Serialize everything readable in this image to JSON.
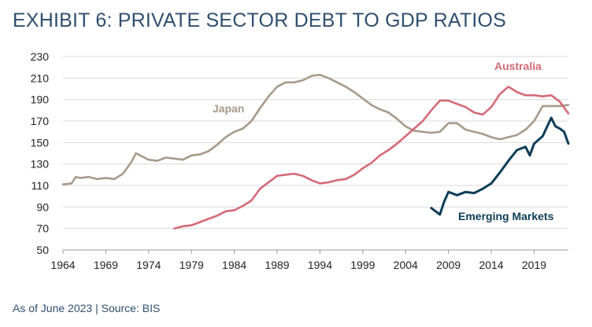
{
  "title": "EXHIBIT 6: PRIVATE SECTOR DEBT TO GDP RATIOS",
  "footer": "As of June 2023 | Source: BIS",
  "colors": {
    "japan": "#a89a8a",
    "australia": "#d46a76",
    "emerging": "#0e3d57",
    "title": "#2f4f6f"
  },
  "chart_data": {
    "type": "line",
    "xlabel": "",
    "ylabel": "",
    "xlim": [
      1964,
      2023
    ],
    "ylim": [
      50,
      230
    ],
    "y_ticks": [
      50,
      70,
      90,
      110,
      130,
      150,
      170,
      190,
      210,
      230
    ],
    "x_ticks": [
      1964,
      1969,
      1974,
      1979,
      1984,
      1989,
      1994,
      1999,
      2004,
      2009,
      2014,
      2019
    ],
    "grid": "horizontal",
    "series": [
      {
        "name": "Japan",
        "color": "#a89a8a",
        "points": [
          [
            1964,
            111
          ],
          [
            1965,
            112
          ],
          [
            1965.5,
            118
          ],
          [
            1966,
            117
          ],
          [
            1967,
            118
          ],
          [
            1968,
            116
          ],
          [
            1969,
            117
          ],
          [
            1970,
            116
          ],
          [
            1971,
            121
          ],
          [
            1972,
            132
          ],
          [
            1972.5,
            140
          ],
          [
            1973,
            138
          ],
          [
            1974,
            134
          ],
          [
            1975,
            133
          ],
          [
            1976,
            136
          ],
          [
            1977,
            135
          ],
          [
            1978,
            134
          ],
          [
            1979,
            138
          ],
          [
            1980,
            139
          ],
          [
            1981,
            142
          ],
          [
            1982,
            148
          ],
          [
            1983,
            155
          ],
          [
            1984,
            160
          ],
          [
            1985,
            163
          ],
          [
            1986,
            170
          ],
          [
            1987,
            182
          ],
          [
            1988,
            193
          ],
          [
            1989,
            202
          ],
          [
            1990,
            206
          ],
          [
            1991,
            206
          ],
          [
            1992,
            208
          ],
          [
            1993,
            212
          ],
          [
            1994,
            213
          ],
          [
            1995,
            210
          ],
          [
            1996,
            206
          ],
          [
            1997,
            202
          ],
          [
            1998,
            197
          ],
          [
            1999,
            191
          ],
          [
            2000,
            185
          ],
          [
            2001,
            181
          ],
          [
            2002,
            178
          ],
          [
            2003,
            172
          ],
          [
            2004,
            165
          ],
          [
            2005,
            161
          ],
          [
            2006,
            160
          ],
          [
            2007,
            159
          ],
          [
            2008,
            160
          ],
          [
            2009,
            168
          ],
          [
            2010,
            168
          ],
          [
            2011,
            162
          ],
          [
            2012,
            160
          ],
          [
            2013,
            158
          ],
          [
            2014,
            155
          ],
          [
            2015,
            153
          ],
          [
            2016,
            155
          ],
          [
            2017,
            157
          ],
          [
            2018,
            162
          ],
          [
            2019,
            170
          ],
          [
            2020,
            184
          ],
          [
            2021,
            184
          ],
          [
            2022,
            184
          ],
          [
            2023,
            185
          ]
        ]
      },
      {
        "name": "Australia",
        "color": "#d46a76",
        "points": [
          [
            1977,
            70
          ],
          [
            1978,
            72
          ],
          [
            1979,
            73
          ],
          [
            1980,
            76
          ],
          [
            1981,
            79
          ],
          [
            1982,
            82
          ],
          [
            1983,
            86
          ],
          [
            1984,
            87
          ],
          [
            1985,
            91
          ],
          [
            1986,
            96
          ],
          [
            1987,
            107
          ],
          [
            1988,
            113
          ],
          [
            1989,
            119
          ],
          [
            1990,
            120
          ],
          [
            1991,
            121
          ],
          [
            1992,
            119
          ],
          [
            1993,
            115
          ],
          [
            1994,
            112
          ],
          [
            1995,
            113
          ],
          [
            1996,
            115
          ],
          [
            1997,
            116
          ],
          [
            1998,
            120
          ],
          [
            1999,
            126
          ],
          [
            2000,
            131
          ],
          [
            2001,
            138
          ],
          [
            2002,
            143
          ],
          [
            2003,
            149
          ],
          [
            2004,
            156
          ],
          [
            2005,
            163
          ],
          [
            2006,
            170
          ],
          [
            2007,
            180
          ],
          [
            2008,
            189
          ],
          [
            2009,
            189
          ],
          [
            2010,
            186
          ],
          [
            2011,
            183
          ],
          [
            2012,
            178
          ],
          [
            2013,
            176
          ],
          [
            2014,
            183
          ],
          [
            2015,
            195
          ],
          [
            2016,
            202
          ],
          [
            2017,
            197
          ],
          [
            2018,
            194
          ],
          [
            2019,
            194
          ],
          [
            2020,
            193
          ],
          [
            2021,
            194
          ],
          [
            2022,
            188
          ],
          [
            2023,
            177
          ]
        ]
      },
      {
        "name": "Emerging Markets",
        "color": "#0e3d57",
        "points": [
          [
            2007,
            89
          ],
          [
            2008,
            83
          ],
          [
            2008.5,
            95
          ],
          [
            2009,
            104
          ],
          [
            2010,
            101
          ],
          [
            2011,
            104
          ],
          [
            2012,
            103
          ],
          [
            2013,
            107
          ],
          [
            2014,
            112
          ],
          [
            2015,
            122
          ],
          [
            2016,
            133
          ],
          [
            2017,
            143
          ],
          [
            2018,
            146
          ],
          [
            2018.5,
            138
          ],
          [
            2019,
            149
          ],
          [
            2020,
            156
          ],
          [
            2021,
            173
          ],
          [
            2021.5,
            165
          ],
          [
            2022,
            163
          ],
          [
            2022.5,
            160
          ],
          [
            2023,
            149
          ]
        ]
      }
    ],
    "annotations": [
      {
        "text": "Japan",
        "series": "Japan"
      },
      {
        "text": "Australia",
        "series": "Australia"
      },
      {
        "text": "Emerging Markets",
        "series": "Emerging Markets"
      }
    ]
  }
}
